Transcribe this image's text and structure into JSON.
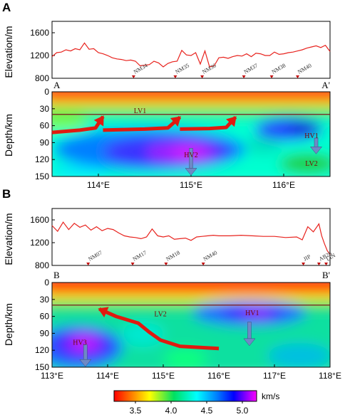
{
  "chart_data": [
    {
      "panel": "A",
      "type": "line",
      "ylabel": "Elevation/m",
      "ylim": [
        800,
        1800
      ],
      "yticks": [
        800,
        1200,
        1600
      ],
      "xlim": [
        113.5,
        116.5
      ],
      "series": [
        {
          "x": [
            113.5,
            113.55,
            113.6,
            113.65,
            113.7,
            113.75,
            113.8,
            113.85,
            113.9,
            113.95,
            114.0,
            114.05,
            114.1,
            114.15,
            114.2,
            114.25,
            114.3,
            114.35,
            114.4,
            114.45,
            114.5,
            114.55,
            114.6,
            114.65,
            114.7,
            114.75,
            114.8,
            114.85,
            114.9,
            114.95,
            115.0,
            115.05,
            115.1,
            115.15,
            115.2,
            115.25,
            115.3,
            115.35,
            115.4,
            115.45,
            115.5,
            115.55,
            115.6,
            115.65,
            115.7,
            115.75,
            115.8,
            115.85,
            115.9,
            115.95,
            116.0,
            116.05,
            116.1,
            116.15,
            116.2,
            116.25,
            116.3,
            116.35,
            116.4,
            116.45,
            116.5
          ],
          "y": [
            1180,
            1250,
            1260,
            1300,
            1280,
            1320,
            1300,
            1420,
            1310,
            1320,
            1250,
            1230,
            1200,
            1160,
            1140,
            1130,
            1110,
            1120,
            1100,
            1020,
            1030,
            1040,
            1100,
            1070,
            1000,
            1060,
            1090,
            1100,
            1290,
            1210,
            1200,
            1250,
            1050,
            1280,
            1000,
            1020,
            1160,
            1170,
            1150,
            1180,
            1200,
            1190,
            1230,
            1180,
            1240,
            1230,
            1200,
            1200,
            1260,
            1220,
            1230,
            1250,
            1260,
            1280,
            1300,
            1330,
            1350,
            1370,
            1340,
            1380,
            1270
          ]
        }
      ],
      "stations": [
        {
          "name": "NM34",
          "lon": 114.38
        },
        {
          "name": "NM35",
          "lon": 114.83
        },
        {
          "name": "NM36",
          "lon": 115.12
        },
        {
          "name": "NM37",
          "lon": 115.57
        },
        {
          "name": "NM38",
          "lon": 115.87
        },
        {
          "name": "NM40",
          "lon": 116.15
        }
      ]
    },
    {
      "panel": "A",
      "type": "heatmap",
      "ylabel": "Depth/km",
      "ylim": [
        150,
        0
      ],
      "yticks": [
        0,
        30,
        60,
        90,
        120,
        150
      ],
      "xlim": [
        113.5,
        116.5
      ],
      "xticks": [
        "114°E",
        "115°E",
        "116°E"
      ],
      "xtick_values": [
        114,
        115,
        116
      ],
      "moho_depth_km": 40,
      "profile_ends": [
        "A",
        "A'"
      ],
      "annotations": [
        {
          "text": "LV1",
          "lon": 114.45,
          "depth": 38
        },
        {
          "text": "HV1",
          "lon": 116.3,
          "depth": 82
        },
        {
          "text": "HV2",
          "lon": 115.0,
          "depth": 116
        },
        {
          "text": "LV2",
          "lon": 116.3,
          "depth": 131
        }
      ],
      "arrows_up": [
        {
          "path": [
            [
              113.5,
              72
            ],
            [
              113.8,
              68
            ],
            [
              113.97,
              64
            ],
            [
              114.05,
              44
            ]
          ]
        },
        {
          "path": [
            [
              114.05,
              68
            ],
            [
              114.5,
              66
            ],
            [
              114.75,
              64
            ],
            [
              114.88,
              45
            ]
          ]
        },
        {
          "path": [
            [
              114.88,
              66
            ],
            [
              115.2,
              65
            ],
            [
              115.38,
              63
            ],
            [
              115.48,
              45
            ]
          ]
        }
      ],
      "arrows_down": [
        {
          "lon": 115.0,
          "depth_from": 100,
          "depth_to": 148
        },
        {
          "lon": 116.35,
          "depth_from": 82,
          "depth_to": 110
        }
      ]
    },
    {
      "panel": "B",
      "type": "line",
      "ylabel": "Elevation/m",
      "ylim": [
        800,
        1800
      ],
      "yticks": [
        800,
        1200,
        1600
      ],
      "xlim": [
        113.0,
        118.0
      ],
      "series": [
        {
          "x": [
            113.0,
            113.1,
            113.2,
            113.3,
            113.4,
            113.5,
            113.6,
            113.7,
            113.8,
            113.9,
            114.0,
            114.1,
            114.2,
            114.3,
            114.4,
            114.5,
            114.6,
            114.7,
            114.8,
            114.9,
            115.0,
            115.1,
            115.2,
            115.3,
            115.4,
            115.5,
            115.6,
            115.7,
            115.8,
            115.9,
            116.0,
            116.2,
            116.4,
            116.6,
            116.8,
            117.0,
            117.2,
            117.4,
            117.5,
            117.6,
            117.7,
            117.8,
            117.85,
            117.9,
            117.95,
            118.0
          ],
          "y": [
            1500,
            1400,
            1560,
            1430,
            1540,
            1470,
            1510,
            1420,
            1480,
            1410,
            1450,
            1430,
            1370,
            1320,
            1300,
            1290,
            1270,
            1300,
            1440,
            1320,
            1300,
            1320,
            1260,
            1270,
            1280,
            1240,
            1300,
            1310,
            1320,
            1330,
            1320,
            1320,
            1330,
            1320,
            1310,
            1310,
            1290,
            1300,
            1250,
            1480,
            1390,
            1530,
            1320,
            1180,
            1060,
            990
          ]
        }
      ],
      "stations": [
        {
          "name": "NM07",
          "lon": 113.65
        },
        {
          "name": "NM17",
          "lon": 114.45
        },
        {
          "name": "NM18",
          "lon": 115.05
        },
        {
          "name": "NM40",
          "lon": 115.72
        },
        {
          "name": "JIP",
          "lon": 117.52
        },
        {
          "name": "AB26",
          "lon": 117.8
        },
        {
          "name": "LIN",
          "lon": 117.93
        }
      ]
    },
    {
      "panel": "B",
      "type": "heatmap",
      "ylabel": "Depth/km",
      "ylim": [
        150,
        0
      ],
      "yticks": [
        0,
        30,
        60,
        90,
        120,
        150
      ],
      "xlim": [
        113.0,
        118.0
      ],
      "xticks": [
        "113°E",
        "114°E",
        "115°E",
        "116°E",
        "117°E",
        "118°E"
      ],
      "xtick_values": [
        113,
        114,
        115,
        116,
        117,
        118
      ],
      "moho_depth_km": 40,
      "profile_ends": [
        "B",
        "B'"
      ],
      "annotations": [
        {
          "text": "LV2",
          "lon": 114.95,
          "depth": 60
        },
        {
          "text": "HV1",
          "lon": 116.6,
          "depth": 58
        },
        {
          "text": "HV3",
          "lon": 113.5,
          "depth": 110
        }
      ],
      "arrows_up": [
        {
          "path": [
            [
              116.0,
              117
            ],
            [
              115.3,
              113
            ],
            [
              114.95,
              102
            ],
            [
              114.75,
              88
            ],
            [
              114.55,
              72
            ],
            [
              114.15,
              60
            ],
            [
              113.85,
              47
            ]
          ]
        }
      ],
      "arrows_down": [
        {
          "lon": 116.55,
          "depth_from": 70,
          "depth_to": 112
        },
        {
          "lon": 113.6,
          "depth_from": 110,
          "depth_to": 149
        }
      ]
    }
  ],
  "colorbar": {
    "min": 3.2,
    "max": 5.2,
    "ticks": [
      "3.5",
      "4.0",
      "4.5",
      "5.0"
    ],
    "tick_values": [
      3.5,
      4.0,
      4.5,
      5.0
    ],
    "unit": "km/s"
  },
  "labels": {
    "panel_a": "A",
    "panel_b": "B",
    "elev_a": "Elevation/m",
    "depth_a": "Depth/km",
    "elev_b": "Elevation/m",
    "depth_b": "Depth/km",
    "end_a_left": "A",
    "end_a_right": "A'",
    "end_b_left": "B",
    "end_b_right": "B'",
    "colorbar_unit": "km/s"
  },
  "colors": {
    "profile_line": "#e8231e",
    "arrow_red": "#e01a10",
    "arrow_blue": "#6e89c6",
    "moho": "#7a1a1a"
  }
}
